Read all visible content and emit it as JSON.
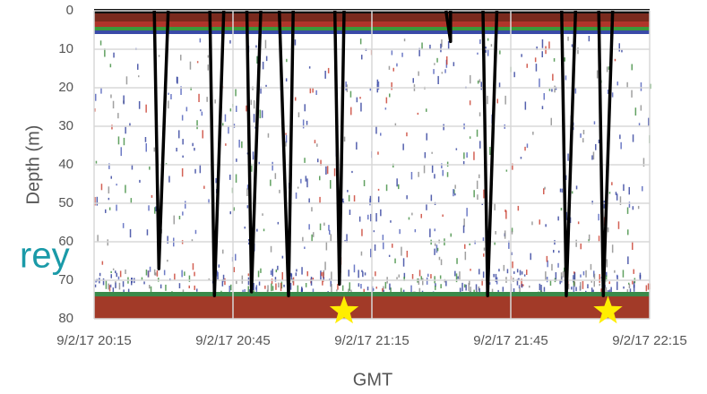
{
  "chart_data": {
    "type": "echogram",
    "ylabel": "Depth (m)",
    "xlabel": "GMT",
    "ylim": [
      0,
      80
    ],
    "yticks": [
      0,
      10,
      20,
      30,
      40,
      50,
      60,
      70,
      80
    ],
    "y_inverted": true,
    "grid": true,
    "xlim": [
      "9/2/17 20:15",
      "9/2/17 22:15"
    ],
    "xticks": [
      "9/2/17 20:15",
      "9/2/17 20:45",
      "9/2/17 21:15",
      "9/2/17 21:45",
      "9/2/17 22:15"
    ],
    "cast_color": "#000000",
    "casts": [
      {
        "x": [
          "9/2/17 20:28",
          "9/2/17 20:29",
          "9/2/17 20:31"
        ],
        "values": [
          0,
          67,
          0
        ]
      },
      {
        "x": [
          "9/2/17 20:40",
          "9/2/17 20:41",
          "9/2/17 20:43"
        ],
        "values": [
          0,
          74,
          0
        ]
      },
      {
        "x": [
          "9/2/17 20:48",
          "9/2/17 20:49",
          "9/2/17 20:51"
        ],
        "values": [
          0,
          73,
          0
        ]
      },
      {
        "x": [
          "9/2/17 20:55",
          "9/2/17 20:57",
          "9/2/17 20:58"
        ],
        "values": [
          0,
          74,
          0
        ]
      },
      {
        "x": [
          "9/2/17 21:07",
          "9/2/17 21:08",
          "9/2/17 21:09"
        ],
        "values": [
          0,
          71,
          0
        ]
      },
      {
        "x": [
          "9/2/17 21:31",
          "9/2/17 21:32",
          "9/2/17 21:32"
        ],
        "values": [
          0,
          8,
          0
        ]
      },
      {
        "x": [
          "9/2/17 21:39",
          "9/2/17 21:40",
          "9/2/17 21:42"
        ],
        "values": [
          0,
          74,
          0
        ]
      },
      {
        "x": [
          "9/2/17 21:56",
          "9/2/17 21:57",
          "9/2/17 21:59"
        ],
        "values": [
          0,
          74,
          0
        ]
      },
      {
        "x": [
          "9/2/17 22:04",
          "9/2/17 22:05",
          "9/2/17 22:07"
        ],
        "values": [
          0,
          74,
          0
        ]
      }
    ],
    "markers": {
      "color": "#ffee00",
      "x": [
        "9/2/17 21:09",
        "9/2/17 22:06"
      ],
      "values": [
        78,
        78
      ]
    },
    "overlay_text": "rey"
  }
}
